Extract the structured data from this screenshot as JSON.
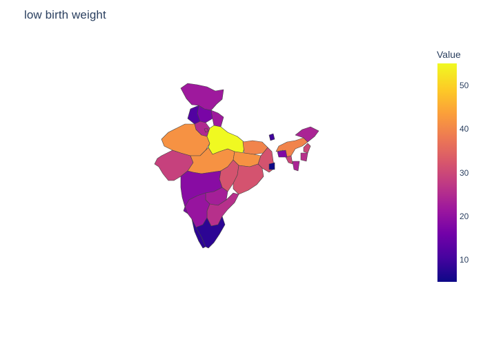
{
  "title": "low birth weight",
  "colorbar": {
    "title": "Value",
    "min": 5,
    "max": 55,
    "ticks": [
      10,
      20,
      30,
      40,
      50
    ],
    "colorscale": [
      "#0d0887",
      "#46039f",
      "#7201a8",
      "#9c179e",
      "#bd3786",
      "#d8576b",
      "#ed7953",
      "#fb9f3a",
      "#fdca26",
      "#f0f921"
    ]
  },
  "chart_data": {
    "type": "choropleth",
    "title": "low birth weight",
    "colorbar_title": "Value",
    "range": [
      5,
      55
    ],
    "regions": [
      {
        "name": "Jammu and Kashmir",
        "value": 22
      },
      {
        "name": "Himachal Pradesh",
        "value": 17
      },
      {
        "name": "Punjab",
        "value": 12
      },
      {
        "name": "Uttarakhand",
        "value": 22
      },
      {
        "name": "Haryana",
        "value": 25
      },
      {
        "name": "Delhi",
        "value": 25
      },
      {
        "name": "Rajasthan",
        "value": 42
      },
      {
        "name": "Uttar Pradesh",
        "value": 55
      },
      {
        "name": "Gujarat",
        "value": 29
      },
      {
        "name": "Madhya Pradesh",
        "value": 42
      },
      {
        "name": "Bihar",
        "value": 40
      },
      {
        "name": "Jharkhand",
        "value": 42
      },
      {
        "name": "West Bengal",
        "value": 32
      },
      {
        "name": "Chhattisgarh",
        "value": 32
      },
      {
        "name": "Odisha",
        "value": 32
      },
      {
        "name": "Maharashtra",
        "value": 19
      },
      {
        "name": "Telangana",
        "value": 23
      },
      {
        "name": "Andhra Pradesh",
        "value": 26
      },
      {
        "name": "Karnataka",
        "value": 21
      },
      {
        "name": "Goa",
        "value": 17
      },
      {
        "name": "Kerala",
        "value": 8
      },
      {
        "name": "Tamil Nadu",
        "value": 8
      },
      {
        "name": "Sikkim",
        "value": 10
      },
      {
        "name": "Assam",
        "value": 40
      },
      {
        "name": "Arunachal Pradesh",
        "value": 24
      },
      {
        "name": "Nagaland",
        "value": 30
      },
      {
        "name": "Manipur",
        "value": 26
      },
      {
        "name": "Mizoram",
        "value": 24
      },
      {
        "name": "Tripura",
        "value": 30
      },
      {
        "name": "Meghalaya",
        "value": 18
      },
      {
        "name": "Dadra and Nagar Haveli",
        "value": 5
      }
    ]
  }
}
